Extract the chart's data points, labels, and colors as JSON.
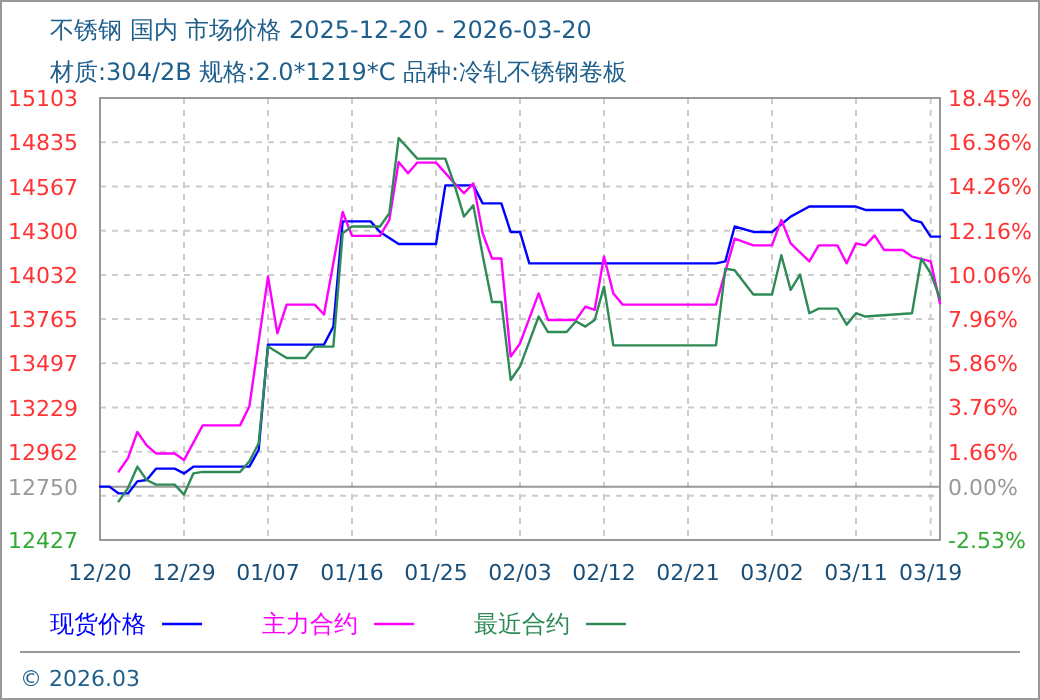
{
  "chart_data": {
    "type": "line",
    "title": "不锈钢 国内 市场价格 2025-12-20 - 2026-03-20",
    "subtitle": "材质:304/2B 规格:2.0*1219*C 品种:冷轧不锈钢卷板",
    "xlim": [
      "2025-12-20",
      "2026-03-20"
    ],
    "xticks": [
      {
        "value": "2025-12-20",
        "label": "12/20"
      },
      {
        "value": "2025-12-29",
        "label": "12/29"
      },
      {
        "value": "2026-01-07",
        "label": "01/07"
      },
      {
        "value": "2026-01-16",
        "label": "01/16"
      },
      {
        "value": "2026-01-25",
        "label": "01/25"
      },
      {
        "value": "2026-02-03",
        "label": "02/03"
      },
      {
        "value": "2026-02-12",
        "label": "02/12"
      },
      {
        "value": "2026-02-21",
        "label": "02/21"
      },
      {
        "value": "2026-03-02",
        "label": "03/02"
      },
      {
        "value": "2026-03-11",
        "label": "03/11"
      },
      {
        "value": "2026-03-19",
        "label": "03/19"
      }
    ],
    "ylim": [
      12427,
      15103
    ],
    "yticks": [
      15103,
      14835,
      14567,
      14300,
      14032,
      13765,
      13497,
      13229,
      12962,
      {
        "value": 12695,
        "label": null
      },
      12750,
      12427
    ],
    "y2lim": [
      -2.53,
      18.45
    ],
    "y2ticks": [
      {
        "value": 18.45,
        "label": "18.45%"
      },
      {
        "value": 16.36,
        "label": "16.36%"
      },
      {
        "value": 14.26,
        "label": "14.26%"
      },
      {
        "value": 12.16,
        "label": "12.16%"
      },
      {
        "value": 10.06,
        "label": "10.06%"
      },
      {
        "value": 7.96,
        "label": "7.96%"
      },
      {
        "value": 5.86,
        "label": "5.86%"
      },
      {
        "value": 3.76,
        "label": "3.76%"
      },
      {
        "value": 1.66,
        "label": "1.66%"
      },
      {
        "value": 0,
        "label": "0.00%"
      },
      {
        "value": -2.53,
        "label": "-2.53%"
      }
    ],
    "ref_lines": [
      {
        "axis": "y",
        "value": 12750,
        "color": "#999999"
      }
    ],
    "grid": true,
    "legend": "bottom",
    "annotations": [
      "© 2026.03"
    ],
    "series": [
      {
        "name": "现货价格",
        "color": "#0000ff",
        "x": [
          "2025-12-20",
          "2025-12-21",
          "2025-12-22",
          "2025-12-23",
          "2025-12-24",
          "2025-12-25",
          "2025-12-26",
          "2025-12-28",
          "2025-12-29",
          "2025-12-30",
          "2026-01-05",
          "2026-01-06",
          "2026-01-07",
          "2026-01-13",
          "2026-01-14",
          "2026-01-15",
          "2026-01-18",
          "2026-01-19",
          "2026-01-21",
          "2026-01-25",
          "2026-01-26",
          "2026-01-29",
          "2026-01-30",
          "2026-02-01",
          "2026-02-02",
          "2026-02-03",
          "2026-02-04",
          "2026-02-24",
          "2026-02-25",
          "2026-02-26",
          "2026-02-28",
          "2026-03-02",
          "2026-03-04",
          "2026-03-06",
          "2026-03-11",
          "2026-03-12",
          "2026-03-16",
          "2026-03-17",
          "2026-03-18",
          "2026-03-19",
          "2026-03-20"
        ],
        "values": [
          12750,
          12750,
          12709,
          12709,
          12782,
          12790,
          12859,
          12859,
          12830,
          12871,
          12871,
          12972,
          13610,
          13610,
          13719,
          14356,
          14356,
          14292,
          14219,
          14219,
          14574,
          14574,
          14465,
          14465,
          14292,
          14292,
          14102,
          14102,
          14114,
          14325,
          14292,
          14292,
          14385,
          14446,
          14446,
          14425,
          14425,
          14365,
          14350,
          14264,
          14264
        ]
      },
      {
        "name": "主力合约",
        "color": "#ff00ff",
        "x": [
          "2025-12-22",
          "2025-12-23",
          "2025-12-24",
          "2025-12-25",
          "2025-12-26",
          "2025-12-28",
          "2025-12-29",
          "2025-12-31",
          "2026-01-04",
          "2026-01-05",
          "2026-01-07",
          "2026-01-08",
          "2026-01-09",
          "2026-01-12",
          "2026-01-13",
          "2026-01-15",
          "2026-01-16",
          "2026-01-19",
          "2026-01-20",
          "2026-01-21",
          "2026-01-22",
          "2026-01-23",
          "2026-01-25",
          "2026-01-27",
          "2026-01-28",
          "2026-01-29",
          "2026-01-30",
          "2026-01-31",
          "2026-02-01",
          "2026-02-02",
          "2026-02-03",
          "2026-02-05",
          "2026-02-06",
          "2026-02-09",
          "2026-02-10",
          "2026-02-11",
          "2026-02-12",
          "2026-02-13",
          "2026-02-14",
          "2026-02-24",
          "2026-02-26",
          "2026-02-28",
          "2026-03-02",
          "2026-03-03",
          "2026-03-04",
          "2026-03-06",
          "2026-03-07",
          "2026-03-09",
          "2026-03-10",
          "2026-03-11",
          "2026-03-12",
          "2026-03-13",
          "2026-03-14",
          "2026-03-16",
          "2026-03-17",
          "2026-03-19",
          "2026-03-20"
        ],
        "values": [
          12842,
          12923,
          13081,
          13000,
          12951,
          12951,
          12911,
          13121,
          13121,
          13235,
          14022,
          13678,
          13852,
          13852,
          13792,
          14413,
          14268,
          14268,
          14365,
          14716,
          14647,
          14712,
          14712,
          14586,
          14526,
          14586,
          14284,
          14131,
          14131,
          13537,
          13617,
          13920,
          13759,
          13759,
          13840,
          13820,
          14143,
          13920,
          13852,
          13852,
          14251,
          14211,
          14211,
          14365,
          14223,
          14114,
          14211,
          14211,
          14102,
          14223,
          14211,
          14271,
          14183,
          14183,
          14143,
          14114,
          13860
        ]
      },
      {
        "name": "最近合约",
        "color": "#2e8b57",
        "x": [
          "2025-12-22",
          "2025-12-23",
          "2025-12-24",
          "2025-12-25",
          "2025-12-26",
          "2025-12-28",
          "2025-12-29",
          "2025-12-30",
          "2025-12-31",
          "2026-01-04",
          "2026-01-05",
          "2026-01-06",
          "2026-01-07",
          "2026-01-09",
          "2026-01-11",
          "2026-01-12",
          "2026-01-14",
          "2026-01-15",
          "2026-01-16",
          "2026-01-19",
          "2026-01-20",
          "2026-01-21",
          "2026-01-23",
          "2026-01-26",
          "2026-01-27",
          "2026-01-28",
          "2026-01-29",
          "2026-01-30",
          "2026-01-31",
          "2026-02-01",
          "2026-02-02",
          "2026-02-03",
          "2026-02-05",
          "2026-02-06",
          "2026-02-08",
          "2026-02-09",
          "2026-02-10",
          "2026-02-11",
          "2026-02-12",
          "2026-02-13",
          "2026-02-24",
          "2026-02-25",
          "2026-02-26",
          "2026-02-28",
          "2026-03-02",
          "2026-03-03",
          "2026-03-04",
          "2026-03-05",
          "2026-03-06",
          "2026-03-07",
          "2026-03-09",
          "2026-03-10",
          "2026-03-11",
          "2026-03-12",
          "2026-03-17",
          "2026-03-18",
          "2026-03-19",
          "2026-03-20"
        ],
        "values": [
          12661,
          12742,
          12871,
          12790,
          12762,
          12762,
          12702,
          12830,
          12839,
          12839,
          12903,
          13012,
          13598,
          13529,
          13529,
          13598,
          13598,
          14284,
          14325,
          14325,
          14405,
          14861,
          14736,
          14736,
          14574,
          14385,
          14453,
          14151,
          13868,
          13868,
          13396,
          13477,
          13780,
          13686,
          13686,
          13751,
          13719,
          13759,
          13961,
          13605,
          13605,
          14070,
          14060,
          13913,
          13913,
          14151,
          13941,
          14034,
          13800,
          13828,
          13828,
          13731,
          13800,
          13780,
          13800,
          14131,
          14042,
          13888
        ]
      }
    ]
  }
}
